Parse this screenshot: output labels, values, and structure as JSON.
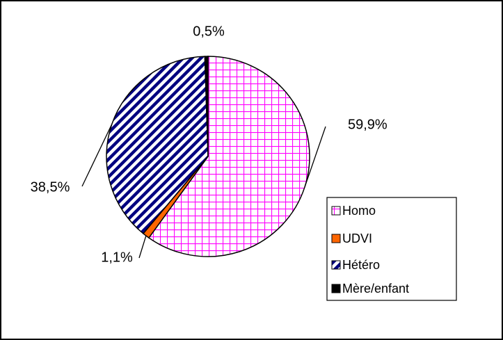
{
  "chart_data": {
    "type": "pie",
    "categories": [
      "Homo",
      "UDVI",
      "Hétéro",
      "Mère/enfant"
    ],
    "values": [
      59.9,
      1.1,
      38.5,
      0.5
    ],
    "value_labels": [
      "59,9%",
      "1,1%",
      "38,5%",
      "0,5%"
    ],
    "colors": [
      "#ff00ff",
      "#ff6600",
      "#000080",
      "#000000"
    ],
    "legend": "right"
  }
}
